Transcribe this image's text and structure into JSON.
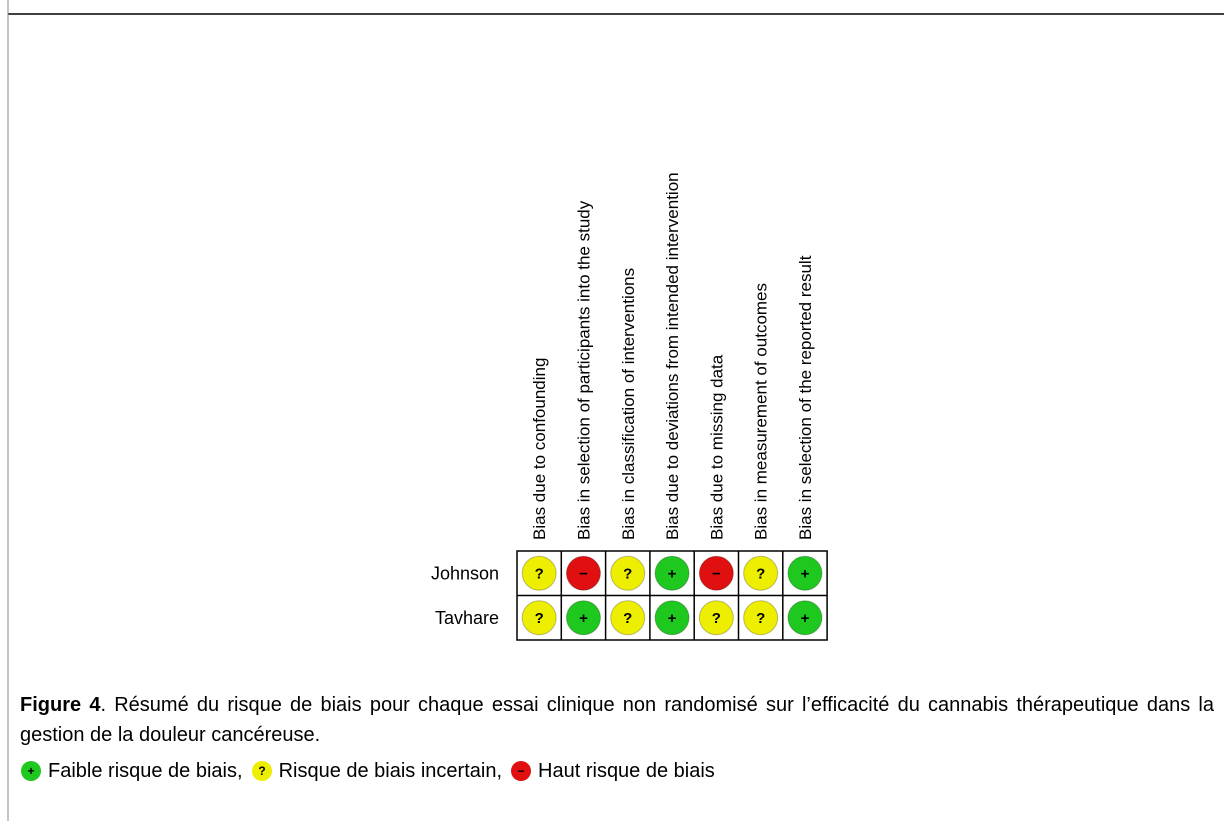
{
  "figure": {
    "domains": [
      "Bias due to confounding",
      "Bias in selection of participants into the study",
      "Bias in classification of interventions",
      "Bias due to deviations from intended intervention",
      "Bias due to missing data",
      "Bias in measurement of outcomes",
      "Bias in selection of the reported result"
    ],
    "studies": [
      {
        "name": "Johnson",
        "cells": [
          "?",
          "−",
          "?",
          "+",
          "−",
          "?",
          "+"
        ]
      },
      {
        "name": "Tavhare",
        "cells": [
          "?",
          "+",
          "?",
          "+",
          "?",
          "?",
          "+"
        ]
      }
    ]
  },
  "caption": {
    "label": "Figure 4",
    "text": ". Résumé du risque de biais pour chaque essai clinique non randomisé sur l’efficacité du cannabis thérapeutique dans la gestion de la douleur cancéreuse."
  },
  "legend": [
    {
      "symbol": "+",
      "color": "#1ec81e",
      "label": "Faible risque de biais,"
    },
    {
      "symbol": "?",
      "color": "#eeee00",
      "label": "Risque de biais incertain,"
    },
    {
      "symbol": "−",
      "color": "#e01010",
      "label": "Haut risque de biais"
    }
  ]
}
